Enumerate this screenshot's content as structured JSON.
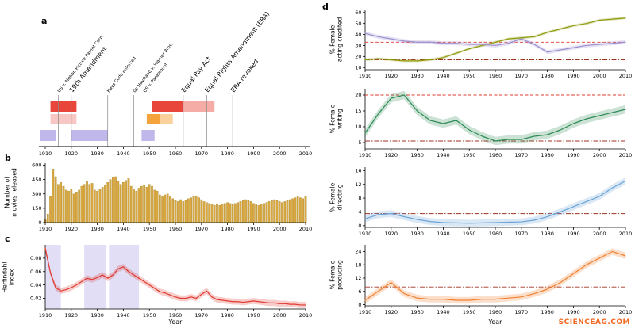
{
  "figure": {
    "panel_labels": {
      "a": "a",
      "b": "b",
      "c": "c",
      "d": "d"
    },
    "watermark": "SCIENCEAG.COM"
  },
  "chart_data": [
    {
      "id": "timeline",
      "type": "timeline",
      "x_ticks": [
        1910,
        1920,
        1930,
        1940,
        1950,
        1960,
        1970,
        1980,
        1990,
        2000,
        2010
      ],
      "events": [
        {
          "year": 1915,
          "label": "US v. Motion Picture Patent Corp.",
          "emph": false
        },
        {
          "year": 1920,
          "label": "19th Amendment",
          "emph": true
        },
        {
          "year": 1934,
          "label": "Hays Code enforced",
          "emph": false
        },
        {
          "year": 1944,
          "label": "de Havilland v. Warner Bros.",
          "emph": false
        },
        {
          "year": 1948,
          "label": "US v. Paramount",
          "emph": false
        },
        {
          "year": 1963,
          "label": "Equal Pay Act",
          "emph": true
        },
        {
          "year": 1972,
          "label": "Equal Rights Amendment (ERA)",
          "emph": true
        },
        {
          "year": 1982,
          "label": "ERA revoked",
          "emph": true
        }
      ],
      "bars": [
        {
          "row": 0,
          "start": 1912,
          "end": 1922,
          "color": "#e8463b",
          "opacity": 1
        },
        {
          "row": 0,
          "start": 1951,
          "end": 1963,
          "color": "#e8463b",
          "opacity": 1
        },
        {
          "row": 0,
          "start": 1963,
          "end": 1975,
          "color": "#e8463b",
          "opacity": 0.45
        },
        {
          "row": 1,
          "start": 1912,
          "end": 1922,
          "color": "#e8463b",
          "opacity": 0.3
        },
        {
          "row": 1,
          "start": 1949,
          "end": 1954,
          "color": "#f5a33c",
          "opacity": 1
        },
        {
          "row": 1,
          "start": 1954,
          "end": 1959,
          "color": "#f5a33c",
          "opacity": 0.5
        },
        {
          "row": 2,
          "start": 1908,
          "end": 1914,
          "color": "#b9b0e8",
          "opacity": 0.9
        },
        {
          "row": 2,
          "start": 1920,
          "end": 1934,
          "color": "#b9b0e8",
          "opacity": 0.9
        },
        {
          "row": 2,
          "start": 1947,
          "end": 1952,
          "color": "#b9b0e8",
          "opacity": 0.9
        }
      ]
    },
    {
      "id": "movies_released",
      "type": "bar",
      "ylabel": "Number of\nmovies released",
      "x_start": 1910,
      "x_ticks": [
        1910,
        1920,
        1930,
        1940,
        1950,
        1960,
        1970,
        1980,
        1990,
        2000,
        2010
      ],
      "y_ticks": [
        0,
        150,
        300,
        450,
        600
      ],
      "y_tick_labels": [
        "0",
        "150",
        "300",
        "450",
        "600"
      ],
      "ylim": [
        0,
        620
      ],
      "color": "#d9a840",
      "values": [
        30,
        90,
        270,
        560,
        480,
        400,
        420,
        380,
        340,
        330,
        350,
        300,
        320,
        340,
        380,
        400,
        430,
        400,
        410,
        340,
        330,
        350,
        370,
        390,
        420,
        450,
        470,
        480,
        430,
        400,
        420,
        440,
        460,
        380,
        350,
        330,
        360,
        380,
        390,
        370,
        400,
        380,
        340,
        330,
        290,
        270,
        290,
        300,
        280,
        250,
        230,
        220,
        240,
        220,
        230,
        250,
        260,
        270,
        280,
        260,
        240,
        220,
        210,
        200,
        190,
        180,
        190,
        180,
        190,
        200,
        210,
        200,
        190,
        200,
        210,
        220,
        230,
        240,
        230,
        220,
        200,
        190,
        180,
        190,
        200,
        210,
        220,
        230,
        240,
        230,
        220,
        210,
        220,
        230,
        240,
        250,
        260,
        270,
        260,
        250,
        270
      ]
    },
    {
      "id": "herfindahl",
      "type": "line",
      "ylabel": "Herfindahl\nindex",
      "xlabel": "Year",
      "x": [
        1910,
        1912,
        1914,
        1916,
        1918,
        1920,
        1922,
        1924,
        1926,
        1928,
        1930,
        1932,
        1934,
        1936,
        1938,
        1940,
        1942,
        1944,
        1946,
        1948,
        1950,
        1952,
        1954,
        1956,
        1958,
        1960,
        1962,
        1964,
        1966,
        1968,
        1970,
        1972,
        1974,
        1976,
        1978,
        1980,
        1982,
        1984,
        1986,
        1988,
        1990,
        1992,
        1994,
        1996,
        1998,
        2000,
        2002,
        2004,
        2006,
        2008,
        2010
      ],
      "x_ticks": [
        1910,
        1920,
        1930,
        1940,
        1950,
        1960,
        1970,
        1980,
        1990,
        2000,
        2010
      ],
      "y_ticks": [
        0.02,
        0.04,
        0.06,
        0.08
      ],
      "y_tick_labels": [
        "0.02",
        "0.04",
        "0.06",
        "0.08"
      ],
      "ylim": [
        0.004,
        0.1
      ],
      "shaded_regions": [
        [
          1910,
          1916
        ],
        [
          1925,
          1933.5
        ],
        [
          1934.5,
          1946
        ]
      ],
      "shade_color": "#c8c2ee",
      "ref_lines": [],
      "series": [
        {
          "name": "herfindahl_index",
          "color": "#e0392f",
          "band": 0.0045,
          "values": [
            0.095,
            0.058,
            0.036,
            0.031,
            0.033,
            0.036,
            0.04,
            0.045,
            0.05,
            0.048,
            0.051,
            0.055,
            0.05,
            0.055,
            0.064,
            0.067,
            0.06,
            0.055,
            0.05,
            0.045,
            0.04,
            0.035,
            0.03,
            0.028,
            0.025,
            0.022,
            0.02,
            0.02,
            0.022,
            0.02,
            0.026,
            0.031,
            0.022,
            0.018,
            0.017,
            0.016,
            0.015,
            0.015,
            0.014,
            0.015,
            0.016,
            0.015,
            0.014,
            0.013,
            0.013,
            0.012,
            0.012,
            0.011,
            0.011,
            0.01,
            0.01
          ]
        }
      ]
    },
    {
      "id": "female_acting",
      "type": "line",
      "ylabel": "% Female\nacting credited",
      "x": [
        1910,
        1915,
        1920,
        1925,
        1930,
        1935,
        1940,
        1945,
        1950,
        1955,
        1960,
        1965,
        1970,
        1975,
        1980,
        1985,
        1990,
        1995,
        2000,
        2005,
        2010
      ],
      "x_ticks": [
        1910,
        1920,
        1930,
        1940,
        1950,
        1960,
        1970,
        1980,
        1990,
        2000,
        2010
      ],
      "y_ticks": [
        10,
        20,
        30,
        40,
        50,
        60
      ],
      "y_tick_labels": [
        "10",
        "20",
        "30",
        "40",
        "50",
        "60"
      ],
      "ylim": [
        8,
        62
      ],
      "ref_lines": [
        {
          "value": 33,
          "style": "dashed",
          "color": "#e0392f"
        },
        {
          "value": 17,
          "style": "dashdot",
          "color": "#a03020"
        }
      ],
      "series": [
        {
          "name": "acting_credited_olive",
          "color": "#8f9a0a",
          "band": 1.2,
          "values": [
            17,
            18,
            17,
            16,
            16,
            17,
            19,
            23,
            27,
            30,
            33,
            36,
            37,
            38,
            42,
            45,
            48,
            50,
            53,
            54,
            55
          ]
        },
        {
          "name": "acting_credited_purple",
          "color": "#9d8fd0",
          "band": 1.8,
          "values": [
            41,
            38,
            36,
            34,
            33,
            33,
            32,
            32,
            31,
            31,
            30,
            32,
            36,
            31,
            24,
            26,
            28,
            30,
            31,
            32,
            33
          ]
        }
      ]
    },
    {
      "id": "female_writing",
      "type": "line",
      "ylabel": "% Female\nwriting",
      "x": [
        1910,
        1915,
        1920,
        1925,
        1930,
        1935,
        1940,
        1945,
        1950,
        1955,
        1960,
        1965,
        1970,
        1975,
        1980,
        1985,
        1990,
        1995,
        2000,
        2005,
        2010
      ],
      "x_ticks": [
        1910,
        1920,
        1930,
        1940,
        1950,
        1960,
        1970,
        1980,
        1990,
        2000,
        2010
      ],
      "y_ticks": [
        5,
        10,
        15,
        20
      ],
      "y_tick_labels": [
        "5",
        "10",
        "15",
        "20"
      ],
      "ylim": [
        3,
        22
      ],
      "ref_lines": [
        {
          "value": 20,
          "style": "dashed",
          "color": "#e0392f"
        },
        {
          "value": 5.5,
          "style": "dashdot",
          "color": "#a03020"
        }
      ],
      "series": [
        {
          "name": "writing",
          "color": "#2e8b57",
          "band": 1.3,
          "values": [
            8,
            14,
            19,
            20,
            15,
            12,
            11,
            12,
            9,
            7,
            5.5,
            6,
            6,
            7,
            7.5,
            9,
            11,
            12.5,
            13.5,
            14.5,
            15.5
          ]
        }
      ]
    },
    {
      "id": "female_directing",
      "type": "line",
      "ylabel": "% Female\ndirecting",
      "x": [
        1910,
        1915,
        1920,
        1925,
        1930,
        1935,
        1940,
        1945,
        1950,
        1955,
        1960,
        1965,
        1970,
        1975,
        1980,
        1985,
        1990,
        1995,
        2000,
        2005,
        2010
      ],
      "x_ticks": [
        1910,
        1920,
        1930,
        1940,
        1950,
        1960,
        1970,
        1980,
        1990,
        2000,
        2010
      ],
      "y_ticks": [
        0,
        4,
        8,
        12,
        16
      ],
      "y_tick_labels": [
        "0",
        "4",
        "8",
        "12",
        "16"
      ],
      "ylim": [
        -0.5,
        17
      ],
      "ref_lines": [
        {
          "value": 3.5,
          "style": "dashdot",
          "color": "#a03020"
        }
      ],
      "series": [
        {
          "name": "directing",
          "color": "#6aa3d8",
          "band": 1.0,
          "values": [
            2,
            3.2,
            3.5,
            2.6,
            1.8,
            1.2,
            0.9,
            0.8,
            0.7,
            0.8,
            0.9,
            1.0,
            1.1,
            1.6,
            2.6,
            4,
            5.5,
            7,
            8.5,
            11,
            13
          ]
        }
      ]
    },
    {
      "id": "female_producing",
      "type": "line",
      "ylabel": "% Female\nproducing",
      "xlabel": "Year",
      "x": [
        1910,
        1915,
        1920,
        1925,
        1930,
        1935,
        1940,
        1945,
        1950,
        1955,
        1960,
        1965,
        1970,
        1975,
        1980,
        1985,
        1990,
        1995,
        2000,
        2005,
        2010
      ],
      "x_ticks": [
        1910,
        1920,
        1930,
        1940,
        1950,
        1960,
        1970,
        1980,
        1990,
        2000,
        2010
      ],
      "y_ticks": [
        0,
        6,
        12,
        18,
        24
      ],
      "y_tick_labels": [
        "0",
        "6",
        "12",
        "18",
        "24"
      ],
      "ylim": [
        -0.5,
        27
      ],
      "ref_lines": [
        {
          "value": 8,
          "style": "dashdot",
          "color": "#a03020"
        }
      ],
      "series": [
        {
          "name": "producing",
          "color": "#f08030",
          "band": 1.5,
          "values": [
            2,
            6,
            10,
            5,
            3,
            2.5,
            2.5,
            2,
            2,
            2.5,
            2.5,
            3,
            3.5,
            5,
            7,
            10,
            14,
            18,
            21,
            24,
            22
          ]
        }
      ]
    }
  ]
}
